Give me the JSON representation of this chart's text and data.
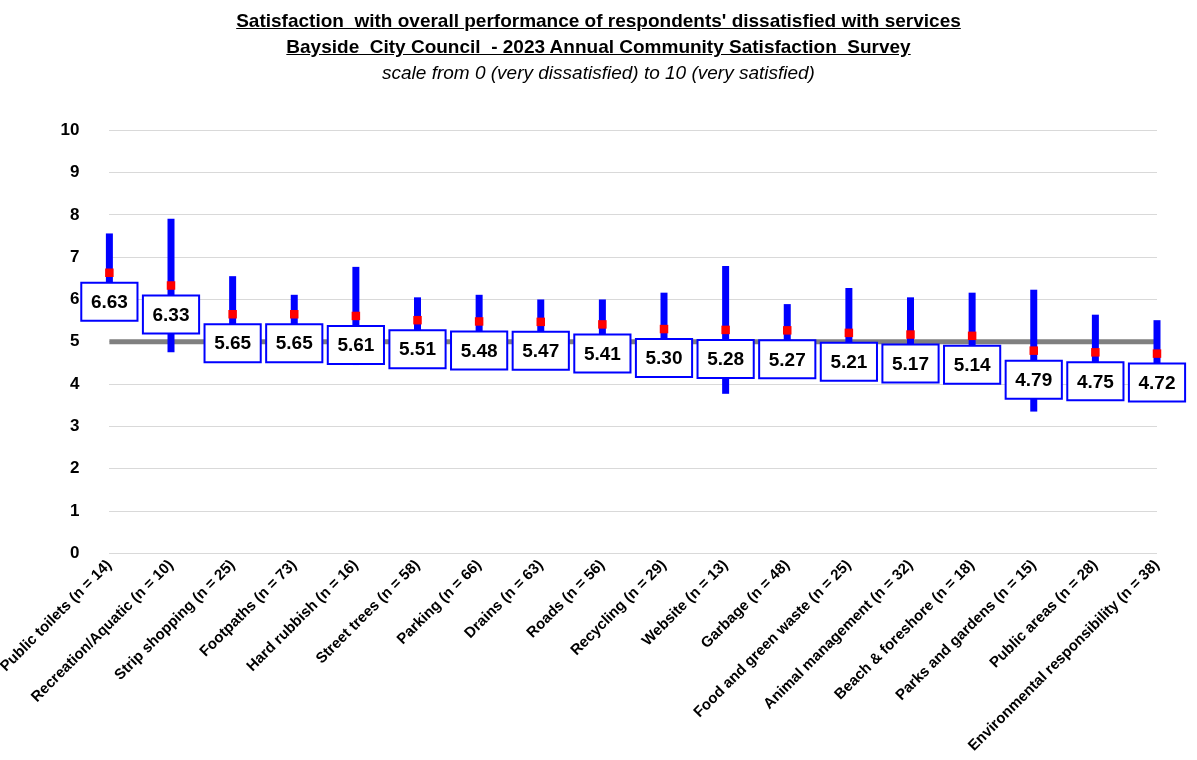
{
  "chart_data": {
    "type": "scatter",
    "title": "Satisfaction  with overall performance of respondents' dissatisfied with services\nBayside  City Council  - 2023 Annual Community Satisfaction  Survey",
    "subtitle": "scale from 0 (very dissatisfied) to 10 (very satisfied)",
    "categories": [
      "Public toilets (n = 14)",
      "Recreation/Aquatic (n = 10)",
      "Strip shopping (n = 25)",
      "Footpaths (n = 73)",
      "Hard rubbish (n = 16)",
      "Street trees (n = 58)",
      "Parking (n = 66)",
      "Drains (n = 63)",
      "Roads (n = 56)",
      "Recycling (n = 29)",
      "Website (n = 13)",
      "Garbage (n = 48)",
      "Food and green waste (n = 25)",
      "Animal management (n = 32)",
      "Beach & foreshore (n = 18)",
      "Parks and gardens (n = 15)",
      "Public areas (n = 28)",
      "Environmental responsibility (n = 38)"
    ],
    "series": [
      {
        "color": "#ff0000",
        "values": [
          6.63,
          6.33,
          5.65,
          5.65,
          5.61,
          5.51,
          5.48,
          5.47,
          5.41,
          5.3,
          5.28,
          5.27,
          5.21,
          5.17,
          5.14,
          4.79,
          4.75,
          4.72
        ],
        "value_labels": [
          "6.63",
          "6.33",
          "5.65",
          "5.65",
          "5.61",
          "5.51",
          "5.48",
          "5.47",
          "5.41",
          "5.30",
          "5.28",
          "5.27",
          "5.21",
          "5.17",
          "5.14",
          "4.79",
          "4.75",
          "4.72"
        ],
        "errors": [
          0.93,
          1.58,
          0.9,
          0.46,
          1.16,
          0.54,
          0.63,
          0.53,
          0.59,
          0.86,
          1.51,
          0.62,
          1.06,
          0.88,
          1.02,
          1.44,
          0.89,
          0.79
        ]
      }
    ],
    "ref_lines": [
      {
        "axis": "y",
        "value": 5,
        "color": "#808080"
      }
    ],
    "ylim": [
      0,
      10
    ],
    "yticks": [
      0,
      1,
      2,
      3,
      4,
      5,
      6,
      7,
      8,
      9,
      10
    ],
    "grid": "y",
    "marker": "square",
    "legend": false
  }
}
